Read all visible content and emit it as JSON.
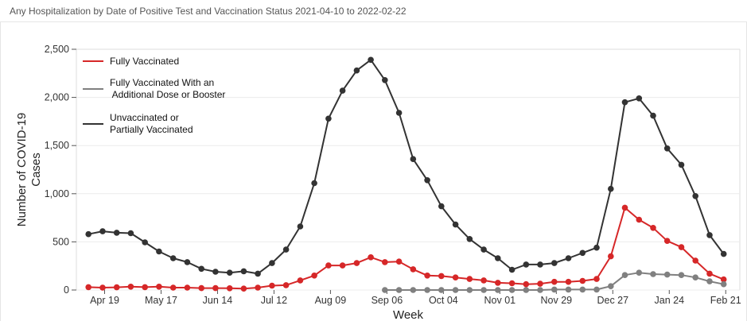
{
  "title": "Any Hospitalization by Date of Positive Test and Vaccination Status 2021-04-10 to 2022-02-22",
  "chart_data": {
    "type": "line",
    "xlabel": "Week",
    "ylabel": "Number of COVID-19 Cases",
    "ylabel_lines": [
      "Number of COVID-19",
      "Cases"
    ],
    "x_range": [
      "2021-04-05",
      "2022-02-28"
    ],
    "ylim": [
      0,
      2500
    ],
    "y_ticks": [
      0,
      500,
      1000,
      1500,
      2000,
      2500
    ],
    "y_tick_labels": [
      "0",
      "500",
      "1,000",
      "1,500",
      "2,000",
      "2,500"
    ],
    "x_ticks": [
      "2021-04-19",
      "2021-05-17",
      "2021-06-14",
      "2021-07-12",
      "2021-08-09",
      "2021-09-06",
      "2021-10-04",
      "2021-11-01",
      "2021-11-29",
      "2021-12-27",
      "2022-01-24",
      "2022-02-21"
    ],
    "x_tick_labels": [
      "Apr 19",
      "May 17",
      "Jun 14",
      "Jul 12",
      "Aug 09",
      "Sep 06",
      "Oct 04",
      "Nov 01",
      "Nov 29",
      "Dec 27",
      "Jan 24",
      "Feb 21"
    ],
    "grid": "horizontal",
    "legend_position": "top-left",
    "x": [
      "2021-04-11",
      "2021-04-18",
      "2021-04-25",
      "2021-05-02",
      "2021-05-09",
      "2021-05-16",
      "2021-05-23",
      "2021-05-30",
      "2021-06-06",
      "2021-06-13",
      "2021-06-20",
      "2021-06-27",
      "2021-07-04",
      "2021-07-11",
      "2021-07-18",
      "2021-07-25",
      "2021-08-01",
      "2021-08-08",
      "2021-08-15",
      "2021-08-22",
      "2021-08-29",
      "2021-09-05",
      "2021-09-12",
      "2021-09-19",
      "2021-09-26",
      "2021-10-03",
      "2021-10-10",
      "2021-10-17",
      "2021-10-24",
      "2021-10-31",
      "2021-11-07",
      "2021-11-14",
      "2021-11-21",
      "2021-11-28",
      "2021-12-05",
      "2021-12-12",
      "2021-12-19",
      "2021-12-26",
      "2022-01-02",
      "2022-01-09",
      "2022-01-16",
      "2022-01-23",
      "2022-01-30",
      "2022-02-06",
      "2022-02-13",
      "2022-02-20"
    ],
    "series": [
      {
        "name": "Fully Vaccinated",
        "color": "#d62728",
        "values": [
          30,
          25,
          28,
          35,
          30,
          35,
          25,
          25,
          20,
          20,
          18,
          15,
          25,
          45,
          50,
          100,
          150,
          255,
          255,
          280,
          340,
          290,
          295,
          215,
          150,
          145,
          130,
          115,
          100,
          75,
          70,
          60,
          65,
          85,
          85,
          95,
          115,
          350,
          855,
          730,
          645,
          510,
          445,
          305,
          170,
          110
        ]
      },
      {
        "name": "Fully Vaccinated With an Additional Dose or Booster",
        "label_lines": [
          "Fully Vaccinated With an",
          " Additional Dose or Booster"
        ],
        "color": "#808080",
        "values": [
          null,
          null,
          null,
          null,
          null,
          null,
          null,
          null,
          null,
          null,
          null,
          null,
          null,
          null,
          null,
          null,
          null,
          null,
          null,
          null,
          null,
          0,
          0,
          0,
          0,
          0,
          0,
          0,
          0,
          0,
          0,
          0,
          0,
          5,
          5,
          5,
          5,
          40,
          155,
          180,
          165,
          160,
          155,
          130,
          90,
          60
        ]
      },
      {
        "name": "Unvaccinated or Partially Vaccinated",
        "label_lines": [
          "Unvaccinated or",
          "Partially Vaccinated"
        ],
        "color": "#333333",
        "values": [
          580,
          610,
          595,
          590,
          495,
          400,
          330,
          290,
          220,
          190,
          180,
          195,
          170,
          280,
          420,
          660,
          1110,
          1780,
          2070,
          2280,
          2390,
          2180,
          1840,
          1360,
          1140,
          870,
          680,
          530,
          420,
          330,
          210,
          265,
          265,
          280,
          330,
          385,
          440,
          1050,
          1950,
          1990,
          1810,
          1470,
          1300,
          975,
          570,
          375
        ]
      }
    ]
  }
}
